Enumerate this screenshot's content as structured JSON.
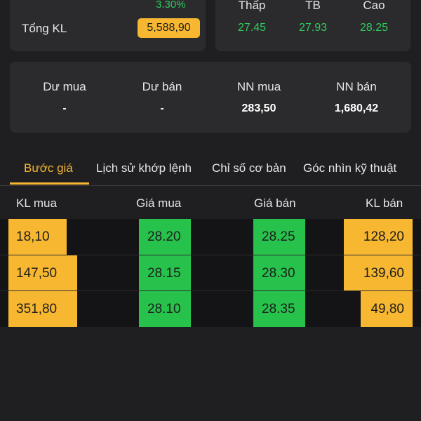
{
  "summary": {
    "change_pct": "3.30%",
    "total_volume_label": "Tổng KL",
    "total_volume_value": "5,588,90"
  },
  "price_stats": [
    {
      "label": "Thấp",
      "value": "27.45"
    },
    {
      "label": "TB",
      "value": "27.93"
    },
    {
      "label": "Cao",
      "value": "28.25"
    }
  ],
  "market_stats": [
    {
      "label": "Dư mua",
      "value": "-"
    },
    {
      "label": "Dư bán",
      "value": "-"
    },
    {
      "label": "NN mua",
      "value": "283,50"
    },
    {
      "label": "NN bán",
      "value": "1,680,42"
    }
  ],
  "tabs": [
    {
      "label": "Bước giá",
      "active": true
    },
    {
      "label": "Lịch sử khớp lệnh",
      "active": false
    },
    {
      "label": "Chỉ số cơ bản",
      "active": false
    },
    {
      "label": "Góc nhìn kỹ thuật",
      "active": false
    }
  ],
  "orderbook": {
    "headers": {
      "bid_volume": "KL mua",
      "bid_price": "Giá mua",
      "ask_price": "Giá bán",
      "ask_volume": "KL bán"
    },
    "rows": [
      {
        "bid_volume": "18,10",
        "bid_price": "28.20",
        "ask_price": "28.25",
        "ask_volume": "128,20",
        "bid_fill": 0.138,
        "ask_fill": 0.163
      },
      {
        "bid_volume": "147,50",
        "bid_price": "28.15",
        "ask_price": "28.30",
        "ask_volume": "139,60",
        "bid_fill": 0.163,
        "ask_fill": 0.163
      },
      {
        "bid_volume": "351,80",
        "bid_price": "28.10",
        "ask_price": "28.35",
        "ask_volume": "49,80",
        "bid_fill": 0.163,
        "ask_fill": 0.123
      }
    ]
  },
  "colors": {
    "background": "#1f1f22",
    "card": "#2b2b2e",
    "accent": "#f7b731",
    "up_green": "#2ecc5b",
    "price_bar_green": "#27c24c"
  }
}
